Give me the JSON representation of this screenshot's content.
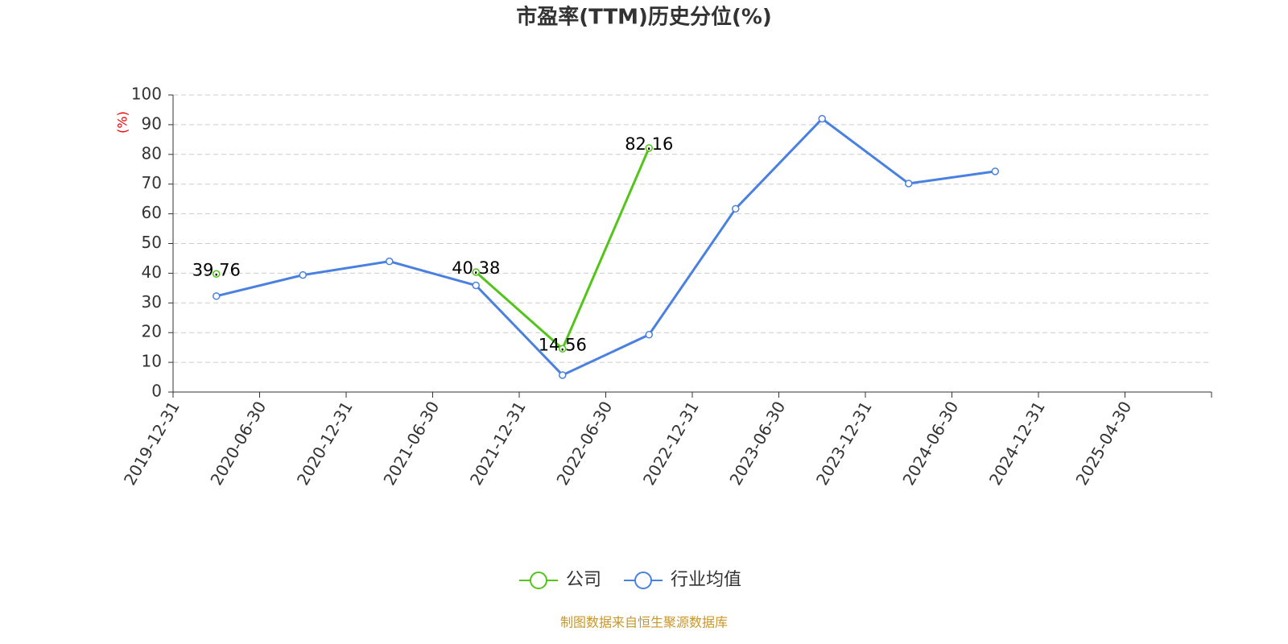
{
  "chart_data": {
    "type": "line",
    "title": "市盈率(TTM)历史分位(%)",
    "y_axis_label": "(%)",
    "categories": [
      "2019-12-31",
      "2020-06-30",
      "2020-12-31",
      "2021-06-30",
      "2021-12-31",
      "2022-06-30",
      "2022-12-31",
      "2023-06-30",
      "2023-12-31",
      "2024-06-30",
      "2024-12-31",
      "2025-04-30"
    ],
    "series": [
      {
        "name": "公司",
        "color": "#52c41a",
        "values": [
          39.76,
          null,
          null,
          40.38,
          14.56,
          82.16,
          null,
          null,
          null,
          null,
          null,
          null
        ],
        "show_labels": true
      },
      {
        "name": "行业均值",
        "color": "#4a80e0",
        "values": [
          32.3,
          39.4,
          44.0,
          35.9,
          5.7,
          19.3,
          61.7,
          92.0,
          70.2,
          74.3,
          null,
          null
        ],
        "show_labels": false
      }
    ],
    "ylim": [
      0,
      100
    ],
    "yticks": [
      0,
      10,
      20,
      30,
      40,
      50,
      60,
      70,
      80,
      90,
      100
    ],
    "grid": true,
    "source": "制图数据来自恒生聚源数据库"
  }
}
